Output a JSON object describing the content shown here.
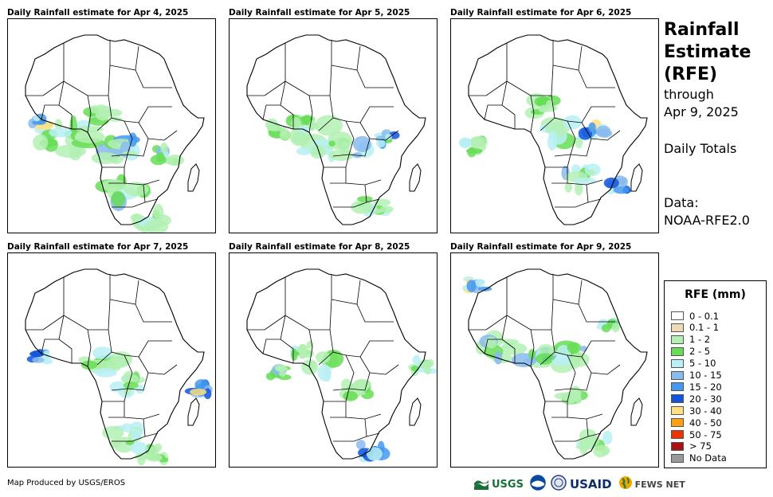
{
  "panels": [
    {
      "title": "Daily Rainfall estimate for Apr 4, 2025"
    },
    {
      "title": "Daily Rainfall estimate for Apr 5, 2025"
    },
    {
      "title": "Daily Rainfall estimate for Apr 6, 2025"
    },
    {
      "title": "Daily Rainfall estimate for Apr 7, 2025"
    },
    {
      "title": "Daily Rainfall estimate for Apr 8, 2025"
    },
    {
      "title": "Daily Rainfall estimate for Apr 9, 2025"
    }
  ],
  "side": {
    "title_line1": "Rainfall",
    "title_line2": "Estimate",
    "title_line3": "(RFE)",
    "through": "through",
    "date": "Apr 9, 2025",
    "totals": "Daily Totals",
    "data_label": "Data:",
    "data_source": "NOAA-RFE2.0"
  },
  "legend": {
    "title": "RFE (mm)",
    "items": [
      {
        "label": "0 - 0.1",
        "color": "#ffffff"
      },
      {
        "label": "0.1 - 1",
        "color": "#f0d9b5"
      },
      {
        "label": "1 - 2",
        "color": "#b3f0b3"
      },
      {
        "label": "2 - 5",
        "color": "#66dd55"
      },
      {
        "label": "5 - 10",
        "color": "#b8f0f5"
      },
      {
        "label": "10 - 15",
        "color": "#88bbee"
      },
      {
        "label": "15 - 20",
        "color": "#4499ee"
      },
      {
        "label": "20 - 30",
        "color": "#1155dd"
      },
      {
        "label": "30 - 40",
        "color": "#ffe080"
      },
      {
        "label": "40 - 50",
        "color": "#ffa010"
      },
      {
        "label": "50 - 75",
        "color": "#ee3300"
      },
      {
        "label": "> 75",
        "color": "#aa1111"
      },
      {
        "label": "No Data",
        "color": "#999999"
      }
    ]
  },
  "credit": "Map Produced by USGS/EROS",
  "logos": {
    "usgs": "USGS",
    "usaid": "USAID",
    "fewsnet": "FEWS NET"
  }
}
